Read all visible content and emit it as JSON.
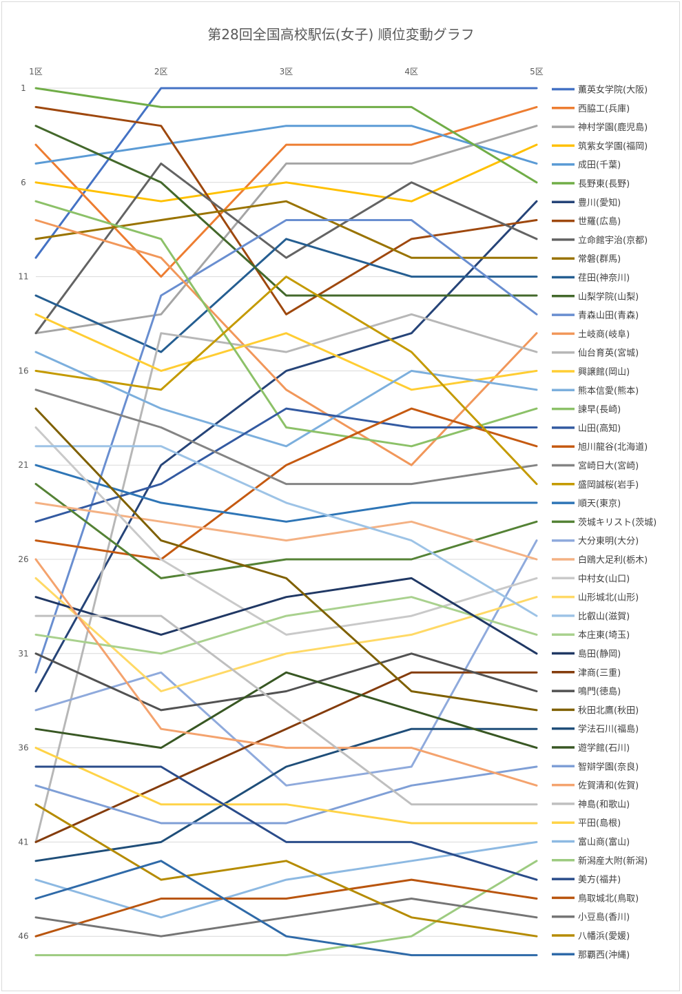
{
  "chart_data": {
    "type": "line",
    "title": "第28回全国高校駅伝(女子) 順位変動グラフ",
    "x": [
      "1区",
      "2区",
      "3区",
      "4区",
      "5区"
    ],
    "y_ticks": [
      "1",
      "6",
      "11",
      "16",
      "21",
      "26",
      "31",
      "36",
      "41",
      "46"
    ],
    "ylim": [
      1,
      47
    ],
    "y_inverted": true,
    "grid": true,
    "legend_position": "right",
    "series": [
      {
        "name": "薫英女学院(大阪)",
        "color": "#4472C4",
        "values": [
          10,
          1,
          1,
          1,
          1
        ]
      },
      {
        "name": "西脇工(兵庫)",
        "color": "#ED7D31",
        "values": [
          4,
          11,
          4,
          4,
          2
        ]
      },
      {
        "name": "神村学園(鹿児島)",
        "color": "#A5A5A5",
        "values": [
          14,
          13,
          5,
          5,
          3
        ]
      },
      {
        "name": "筑紫女学園(福岡)",
        "color": "#FFC000",
        "values": [
          6,
          7,
          6,
          7,
          4
        ]
      },
      {
        "name": "成田(千葉)",
        "color": "#5B9BD5",
        "values": [
          5,
          4,
          3,
          3,
          5
        ]
      },
      {
        "name": "長野東(長野)",
        "color": "#70AD47",
        "values": [
          1,
          2,
          2,
          2,
          6
        ]
      },
      {
        "name": "豊川(愛知)",
        "color": "#264478",
        "values": [
          33,
          21,
          16,
          14,
          7
        ]
      },
      {
        "name": "世羅(広島)",
        "color": "#9E480E",
        "values": [
          2,
          3,
          13,
          9,
          8
        ]
      },
      {
        "name": "立命館宇治(京都)",
        "color": "#636363",
        "values": [
          14,
          5,
          10,
          6,
          9
        ]
      },
      {
        "name": "常磐(群馬)",
        "color": "#997300",
        "values": [
          9,
          8,
          7,
          10,
          10
        ]
      },
      {
        "name": "荏田(神奈川)",
        "color": "#255E91",
        "values": [
          12,
          15,
          9,
          11,
          11
        ]
      },
      {
        "name": "山梨学院(山梨)",
        "color": "#43682B",
        "values": [
          3,
          6,
          12,
          12,
          12
        ]
      },
      {
        "name": "青森山田(青森)",
        "color": "#698ED0",
        "values": [
          32,
          12,
          8,
          8,
          13
        ]
      },
      {
        "name": "土岐商(岐阜)",
        "color": "#F1975A",
        "values": [
          8,
          10,
          17,
          21,
          14
        ]
      },
      {
        "name": "仙台育英(宮城)",
        "color": "#B7B7B7",
        "values": [
          41,
          14,
          15,
          13,
          15
        ]
      },
      {
        "name": "興譲館(岡山)",
        "color": "#FFCD33",
        "values": [
          13,
          16,
          14,
          17,
          16
        ]
      },
      {
        "name": "熊本信愛(熊本)",
        "color": "#7CAFDD",
        "values": [
          15,
          18,
          20,
          16,
          17
        ]
      },
      {
        "name": "諫早(長崎)",
        "color": "#8CC168",
        "values": [
          7,
          9,
          19,
          20,
          18
        ]
      },
      {
        "name": "山田(高知)",
        "color": "#335AA1",
        "values": [
          24,
          22,
          18,
          19,
          19
        ]
      },
      {
        "name": "旭川龍谷(北海道)",
        "color": "#C55A11",
        "values": [
          25,
          26,
          21,
          18,
          20
        ]
      },
      {
        "name": "宮崎日大(宮崎)",
        "color": "#848484",
        "values": [
          17,
          19,
          22,
          22,
          21
        ]
      },
      {
        "name": "盛岡誠桜(岩手)",
        "color": "#C49A00",
        "values": [
          16,
          17,
          11,
          15,
          22
        ]
      },
      {
        "name": "順天(東京)",
        "color": "#2E75B6",
        "values": [
          21,
          23,
          24,
          23,
          23
        ]
      },
      {
        "name": "茨城キリスト(茨城)",
        "color": "#548235",
        "values": [
          22,
          27,
          26,
          26,
          24
        ]
      },
      {
        "name": "大分東明(大分)",
        "color": "#8FAADC",
        "values": [
          34,
          32,
          38,
          37,
          25
        ]
      },
      {
        "name": "白鴎大足利(栃木)",
        "color": "#F4B183",
        "values": [
          23,
          24,
          25,
          24,
          26
        ]
      },
      {
        "name": "中村女(山口)",
        "color": "#C9C9C9",
        "values": [
          19,
          26,
          30,
          29,
          27
        ]
      },
      {
        "name": "山形城北(山形)",
        "color": "#FFD966",
        "values": [
          27,
          33,
          31,
          30,
          28
        ]
      },
      {
        "name": "比叡山(滋賀)",
        "color": "#9DC3E6",
        "values": [
          20,
          20,
          23,
          25,
          29
        ]
      },
      {
        "name": "本庄東(埼玉)",
        "color": "#A9D18E",
        "values": [
          30,
          31,
          29,
          28,
          30
        ]
      },
      {
        "name": "島田(静岡)",
        "color": "#203864",
        "values": [
          28,
          30,
          28,
          27,
          31
        ]
      },
      {
        "name": "津商(三重)",
        "color": "#843C0C",
        "values": [
          41,
          38,
          35,
          32,
          32
        ]
      },
      {
        "name": "鳴門(徳島)",
        "color": "#525252",
        "values": [
          31,
          34,
          33,
          31,
          33
        ]
      },
      {
        "name": "秋田北鷹(秋田)",
        "color": "#7F6000",
        "values": [
          18,
          25,
          27,
          33,
          34
        ]
      },
      {
        "name": "学法石川(福島)",
        "color": "#1F4E79",
        "values": [
          42,
          41,
          37,
          35,
          35
        ]
      },
      {
        "name": "遊学館(石川)",
        "color": "#385723",
        "values": [
          35,
          36,
          32,
          34,
          36
        ]
      },
      {
        "name": "智辯学園(奈良)",
        "color": "#7F9FD6",
        "values": [
          38,
          40,
          40,
          38,
          37
        ]
      },
      {
        "name": "佐賀清和(佐賀)",
        "color": "#F4A36E",
        "values": [
          26,
          35,
          36,
          36,
          38
        ]
      },
      {
        "name": "神島(和歌山)",
        "color": "#BFBFBF",
        "values": [
          29,
          29,
          34,
          39,
          39
        ]
      },
      {
        "name": "平田(島根)",
        "color": "#FFD347",
        "values": [
          36,
          39,
          39,
          40,
          40
        ]
      },
      {
        "name": "富山商(富山)",
        "color": "#8DB9E2",
        "values": [
          43,
          45,
          43,
          42,
          41
        ]
      },
      {
        "name": "新潟産大附(新潟)",
        "color": "#9DCB80",
        "values": [
          47,
          47,
          47,
          46,
          42
        ]
      },
      {
        "name": "美方(福井)",
        "color": "#2A4C8A",
        "values": [
          37,
          37,
          41,
          41,
          43
        ]
      },
      {
        "name": "鳥取城北(鳥取)",
        "color": "#B9550E",
        "values": [
          46,
          44,
          44,
          43,
          44
        ]
      },
      {
        "name": "小豆島(香川)",
        "color": "#757575",
        "values": [
          45,
          46,
          45,
          44,
          45
        ]
      },
      {
        "name": "八幡浜(愛媛)",
        "color": "#B58B00",
        "values": [
          39,
          43,
          42,
          45,
          46
        ]
      },
      {
        "name": "那覇西(沖縄)",
        "color": "#2F6AA8",
        "values": [
          44,
          42,
          46,
          47,
          47
        ]
      }
    ]
  }
}
